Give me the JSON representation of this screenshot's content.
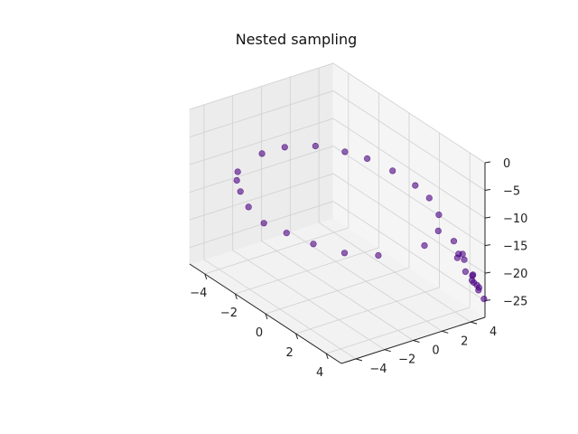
{
  "chart_data": {
    "type": "scatter",
    "title": "Nested sampling",
    "xlabel": "",
    "ylabel": "",
    "zlabel": "",
    "xlim": [
      -5,
      5
    ],
    "ylim": [
      -5,
      5
    ],
    "zlim": [
      -28,
      0
    ],
    "xticks": [
      -4,
      -2,
      0,
      2,
      4
    ],
    "xtick_labels": [
      "−4",
      "−2",
      "0",
      "2",
      "4"
    ],
    "yticks": [
      -4,
      -2,
      0,
      2,
      4
    ],
    "ytick_labels": [
      "−4",
      "−2",
      "0",
      "2",
      "4"
    ],
    "zticks": [
      0,
      -5,
      -10,
      -15,
      -20,
      -25
    ],
    "ztick_labels": [
      "0",
      "−5",
      "−10",
      "−15",
      "−20",
      "−25"
    ],
    "grid": true,
    "point_color": "#4b0082",
    "surface": "z = -(x^2 + y^2) / 2 on the domain [-5, 5] x [-5, 5]",
    "series": [
      {
        "values": [
          [
            -4.87,
            -0.1,
            -11.86
          ],
          [
            -4.6,
            1.2,
            -11.3
          ],
          [
            -4.2,
            -2.5,
            -11.94
          ],
          [
            -3.9,
            2.6,
            -10.99
          ],
          [
            -3.5,
            -3.3,
            -11.57
          ],
          [
            -3.0,
            3.7,
            -11.35
          ],
          [
            -2.6,
            -4.0,
            -11.38
          ],
          [
            -2.1,
            4.3,
            -11.45
          ],
          [
            -1.5,
            -4.6,
            -11.7
          ],
          [
            -0.9,
            4.8,
            -11.92
          ],
          [
            -0.2,
            -4.9,
            -12.03
          ],
          [
            0.5,
            4.9,
            -12.13
          ],
          [
            1.1,
            -4.7,
            -11.65
          ],
          [
            1.8,
            4.5,
            -11.74
          ],
          [
            2.4,
            -4.2,
            -11.7
          ],
          [
            3.0,
            3.9,
            -12.11
          ],
          [
            3.6,
            -3.3,
            -11.93
          ],
          [
            4.1,
            2.7,
            -12.05
          ],
          [
            4.5,
            -1.9,
            -11.93
          ],
          [
            4.8,
            1.0,
            -12.02
          ],
          [
            4.95,
            4.6,
            -22.83
          ],
          [
            4.7,
            4.9,
            -23.05
          ],
          [
            4.9,
            4.2,
            -20.83
          ],
          [
            4.4,
            4.8,
            -21.2
          ],
          [
            4.85,
            3.8,
            -18.98
          ],
          [
            4.2,
            4.4,
            -18.5
          ],
          [
            4.6,
            3.5,
            -16.7
          ],
          [
            3.9,
            4.6,
            -18.19
          ],
          [
            4.3,
            3.9,
            -16.85
          ],
          [
            3.8,
            4.1,
            -15.6
          ],
          [
            4.98,
            4.95,
            -24.65
          ],
          [
            4.75,
            4.7,
            -22.33
          ],
          [
            4.88,
            4.35,
            -21.37
          ],
          [
            4.55,
            4.6,
            -20.93
          ]
        ]
      }
    ]
  }
}
